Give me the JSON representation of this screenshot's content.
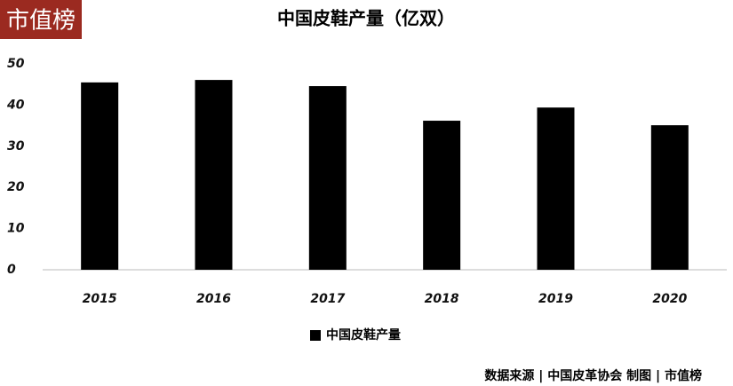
{
  "logo": "市值榜",
  "source": "数据来源 | 中国皮革协会  制图 | 市值榜",
  "chart_data": {
    "type": "bar",
    "title": "中国皮鞋产量（亿双）",
    "categories": [
      "2015",
      "2016",
      "2017",
      "2018",
      "2019",
      "2020"
    ],
    "series": [
      {
        "name": "中国皮鞋产量",
        "color": "#000000",
        "values": [
          45.5,
          46.1,
          44.6,
          36.2,
          39.4,
          35.1
        ]
      }
    ],
    "ylim": [
      0,
      50
    ],
    "yticks": [
      0,
      10,
      20,
      30,
      40,
      50
    ],
    "grid": false,
    "legend": "bottom"
  }
}
